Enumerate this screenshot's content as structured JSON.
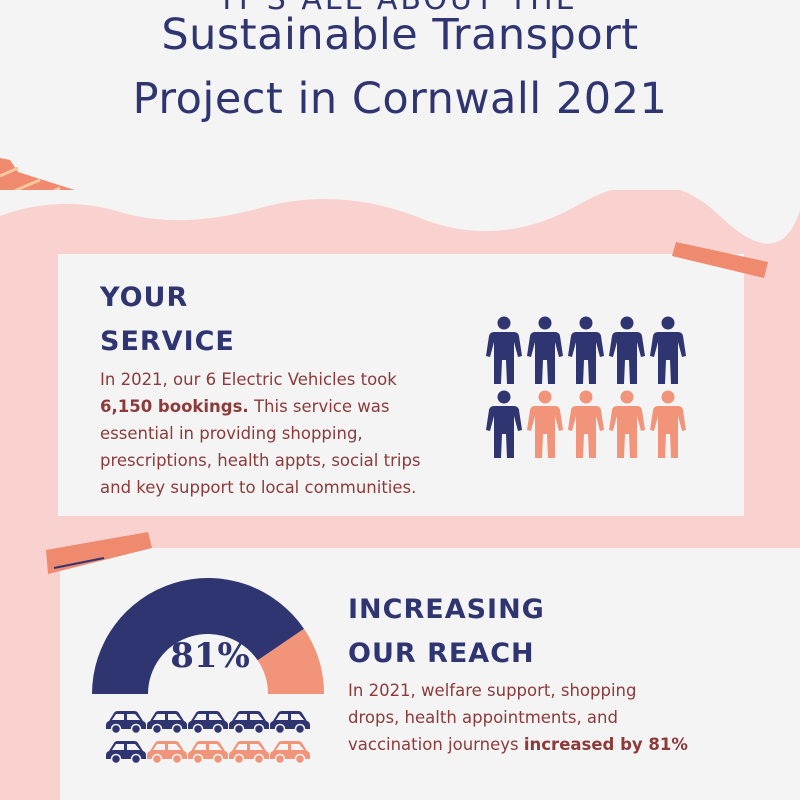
{
  "header": {
    "kicker": "IT'S ALL ABOUT THE",
    "title_line1": "Sustainable Transport",
    "title_line2": "Project in Cornwall 2021"
  },
  "colors": {
    "navy": "#2f3570",
    "coral": "#f2947a",
    "pink": "#f9d2cf",
    "card": "#f5f4f4",
    "text_red": "#8c3a3a"
  },
  "service": {
    "heading_line1": "YOUR",
    "heading_line2": "SERVICE",
    "text_1": "In 2021, our 6 Electric Vehicles took",
    "text_bold": "6,150 bookings.",
    "text_2": " This service was",
    "text_3": "essential in providing shopping,",
    "text_4": "prescriptions, health appts, social trips",
    "text_5": "and key support to local communities.",
    "people_total": 10,
    "people_highlighted": 6,
    "person_icon": "person-icon"
  },
  "reach": {
    "heading_line1": "INCREASING",
    "heading_line2": "OUR REACH",
    "text_1": "In 2021, welfare support, shopping",
    "text_2": "drops, health appointments, and",
    "text_3": "vaccination journeys ",
    "text_bold": "increased by 81%",
    "gauge_label": "81%",
    "gauge_percent": 81,
    "cars_total": 10,
    "cars_highlighted": 6,
    "car_icon": "car-icon"
  }
}
